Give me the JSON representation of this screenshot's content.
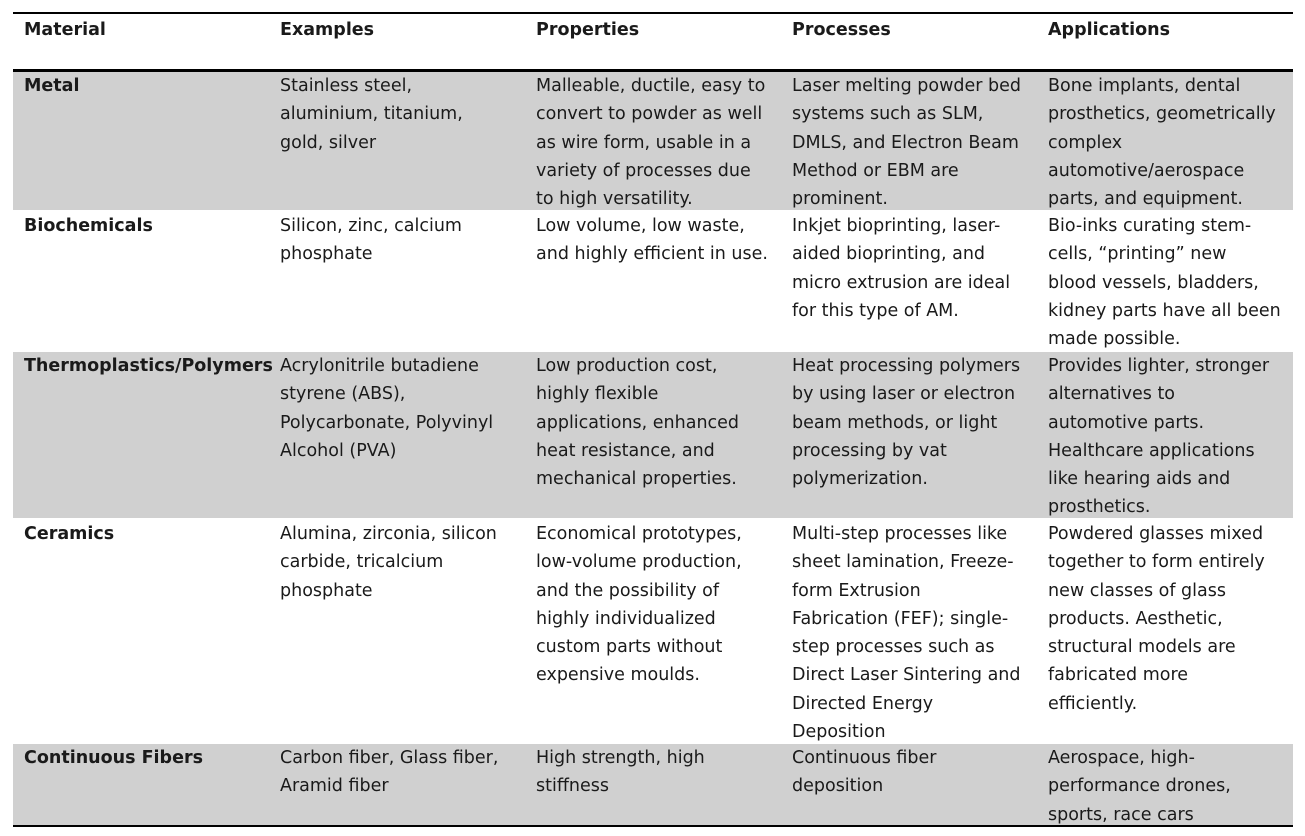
{
  "table": {
    "headers": [
      "Material",
      "Examples",
      "Properties",
      "Processes",
      "Applications"
    ],
    "rows": [
      {
        "material": "Metal",
        "examples": "Stainless steel,\naluminium, titanium,\ngold, silver",
        "properties": "Malleable, ductile, easy to\nconvert to powder as well\nas wire form, usable in a\nvariety of processes due\nto high versatility.",
        "processes": "Laser melting powder bed\nsystems such as SLM,\nDMLS, and Electron Beam\nMethod or EBM are\nprominent.",
        "applications": "Bone implants, dental\nprosthetics, geometrically\ncomplex\nautomotive/aerospace\nparts, and equipment."
      },
      {
        "material": "Biochemicals",
        "examples": "Silicon, zinc, calcium\nphosphate",
        "properties": "Low volume, low waste,\nand highly efficient in use.",
        "processes": "Inkjet bioprinting, laser-\naided bioprinting, and\nmicro extrusion are ideal\nfor this type of AM.",
        "applications": "Bio-inks curating stem-\ncells, “printing” new\nblood vessels, bladders,\nkidney parts have all been\nmade possible."
      },
      {
        "material": "Thermoplastics/Polymers",
        "examples": "Acrylonitrile butadiene\nstyrene (ABS),\nPolycarbonate, Polyvinyl\nAlcohol (PVA)",
        "properties": "Low production cost,\nhighly flexible\napplications, enhanced\nheat resistance, and\nmechanical properties.",
        "processes": "Heat processing polymers\nby using laser or electron\nbeam methods, or light\nprocessing by vat\npolymerization.",
        "applications": "Provides lighter, stronger\nalternatives to\nautomotive parts.\nHealthcare applications\nlike hearing aids and\nprosthetics."
      },
      {
        "material": "Ceramics",
        "examples": "Alumina, zirconia, silicon\ncarbide, tricalcium\nphosphate",
        "properties": "Economical prototypes,\nlow-volume production,\nand the possibility of\nhighly individualized\ncustom parts without\nexpensive moulds.",
        "processes": "Multi-step processes like\nsheet lamination, Freeze-\nform Extrusion\nFabrication (FEF); single-\nstep processes such as\nDirect Laser Sintering and\nDirected Energy\nDeposition",
        "applications": "Powdered glasses mixed\ntogether to form entirely\nnew classes of glass\nproducts. Aesthetic,\nstructural models are\nfabricated more\nefficiently."
      },
      {
        "material": "Continuous Fibers",
        "examples": "Carbon fiber, Glass fiber,\nAramid fiber",
        "properties": "High strength, high\nstiffness",
        "processes": "Continuous fiber\ndeposition",
        "applications": "Aerospace, high-\nperformance drones,\nsports, race cars"
      }
    ]
  }
}
